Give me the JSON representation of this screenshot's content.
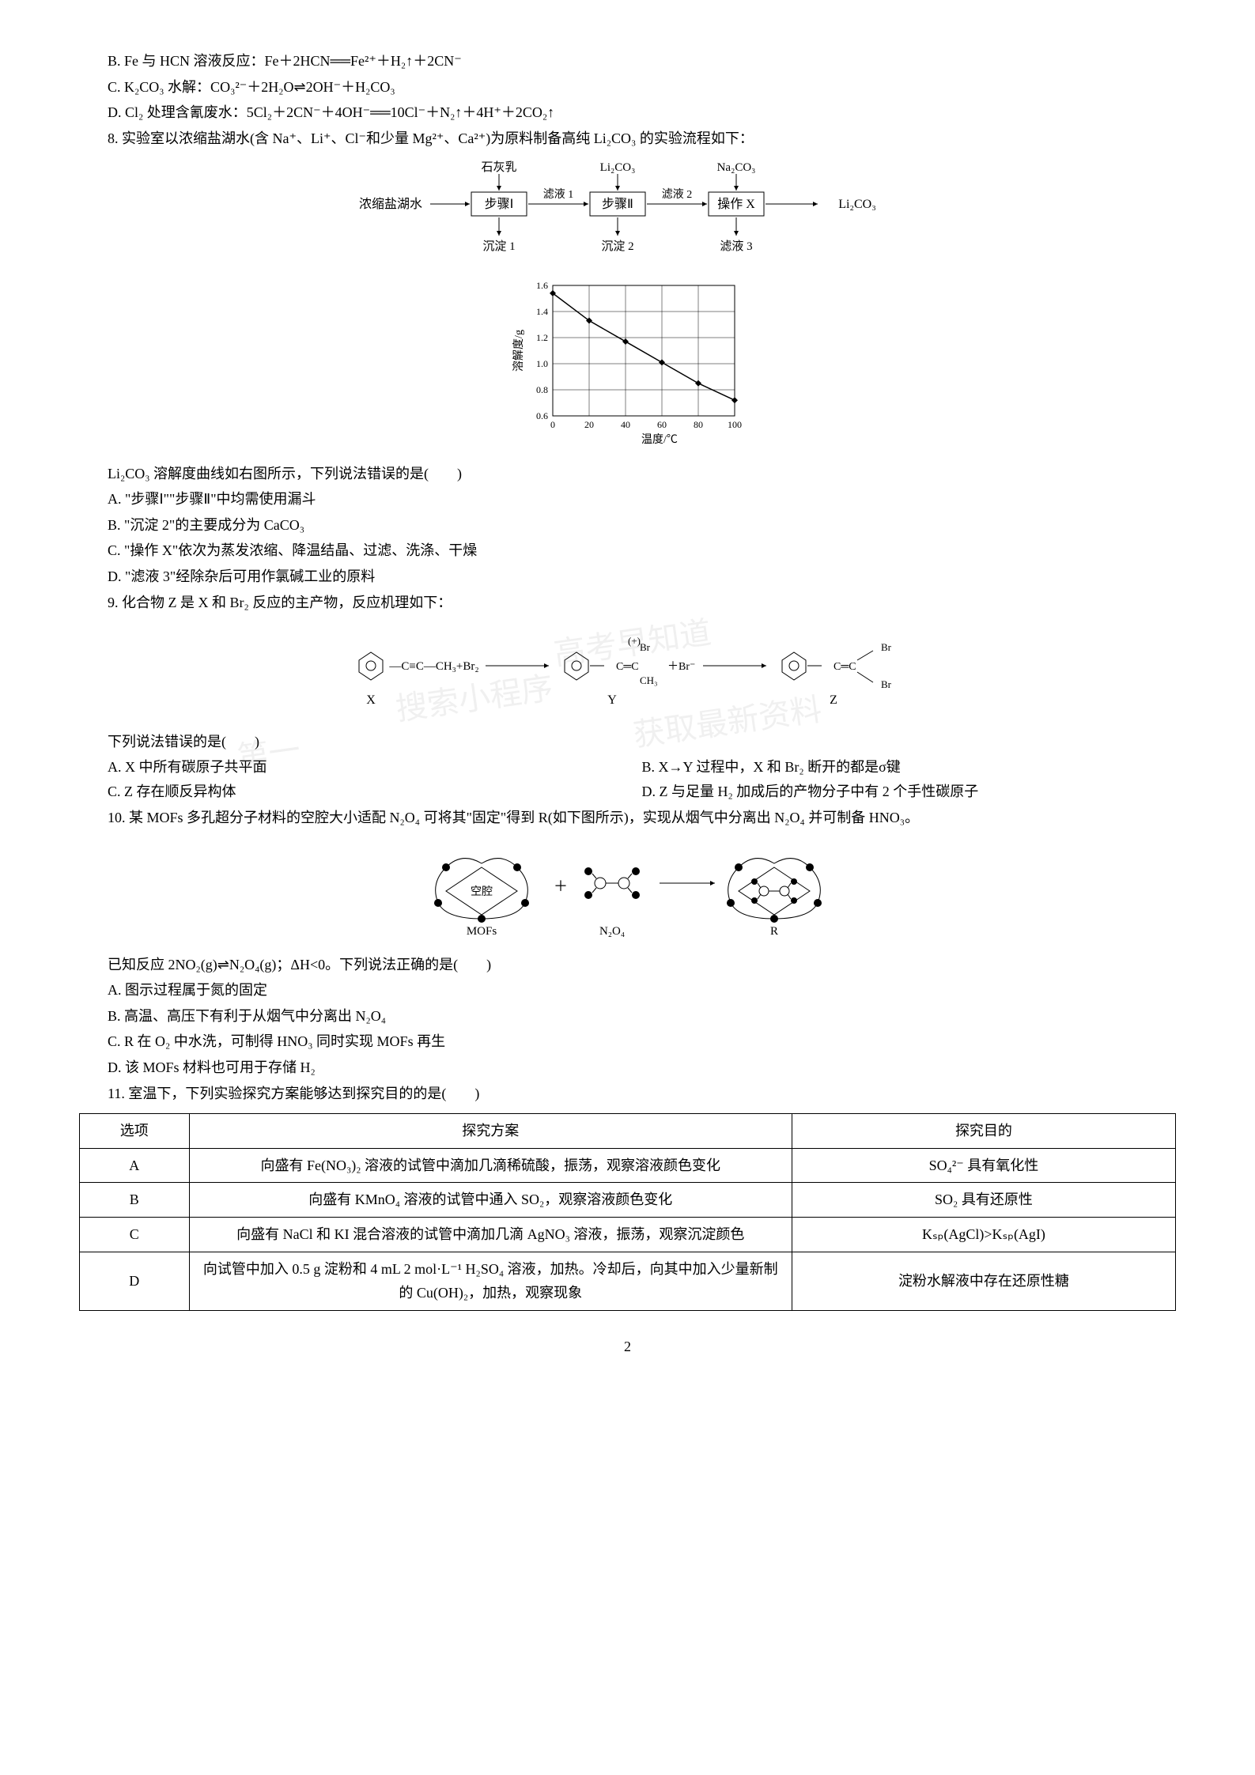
{
  "prelines": {
    "B": "B. Fe 与 HCN 溶液反应：Fe＋2HCN══Fe²⁺＋H₂↑＋2CN⁻",
    "C": "C. K₂CO₃ 水解：CO₃²⁻＋2H₂O⇌2OH⁻＋H₂CO₃",
    "D": "D. Cl₂ 处理含氰废水：5Cl₂＋2CN⁻＋4OH⁻══10Cl⁻＋N₂↑＋4H⁺＋2CO₂↑"
  },
  "q8": {
    "stem": "8. 实验室以浓缩盐湖水(含 Na⁺、Li⁺、Cl⁻和少量 Mg²⁺、Ca²⁺)为原料制备高纯 Li₂CO₃ 的实验流程如下：",
    "flow": {
      "start": "浓缩盐湖水",
      "top1": "石灰乳",
      "step1": "步骤Ⅰ",
      "bottom1": "沉淀 1",
      "mid1": "滤液 1",
      "top2": "Li₂CO₃",
      "step2": "步骤Ⅱ",
      "bottom2": "沉淀 2",
      "mid2": "滤液 2",
      "top3": "Na₂CO₃",
      "step3": "操作 X",
      "bottom3": "滤液 3",
      "end": "Li₂CO₃"
    },
    "chart": {
      "type": "line-scatter",
      "xlabel": "温度/℃",
      "ylabel": "溶解度/g",
      "xticks": [
        0,
        20,
        40,
        60,
        80,
        100
      ],
      "yticks": [
        0.6,
        0.8,
        1.0,
        1.2,
        1.4,
        1.6
      ],
      "points_x": [
        0,
        20,
        40,
        60,
        80,
        100
      ],
      "points_y": [
        1.54,
        1.33,
        1.17,
        1.01,
        0.85,
        0.72
      ],
      "marker": "diamond",
      "marker_color": "#000000",
      "line_color": "#000000",
      "grid_color": "#000000",
      "background": "#ffffff",
      "font_size": 12
    },
    "post": "Li₂CO₃ 溶解度曲线如右图所示，下列说法错误的是(　　)",
    "A": "A. \"步骤Ⅰ\"\"步骤Ⅱ\"中均需使用漏斗",
    "B": "B. \"沉淀 2\"的主要成分为 CaCO₃",
    "C": "C. \"操作 X\"依次为蒸发浓缩、降温结晶、过滤、洗涤、干燥",
    "D": "D. \"滤液 3\"经除杂后可用作氯碱工业的原料"
  },
  "q9": {
    "stem": "9. 化合物 Z 是 X 和 Br₂ 反应的主产物，反应机理如下：",
    "labels": {
      "X": "X",
      "Y": "Y",
      "Z": "Z"
    },
    "reagents": "—C≡C—CH₃+Br₂ ——→",
    "post": "下列说法错误的是(　　)",
    "A": "A. X 中所有碳原子共平面",
    "B": "B. X→Y 过程中，X 和 Br₂ 断开的都是σ键",
    "C": "C. Z 存在顺反异构体",
    "D": "D. Z 与足量 H₂ 加成后的产物分子中有 2 个手性碳原子"
  },
  "q10": {
    "stem": "10. 某 MOFs 多孔超分子材料的空腔大小适配 N₂O₄ 可将其\"固定\"得到 R(如下图所示)，实现从烟气中分离出 N₂O₄ 并可制备 HNO₃。",
    "labels": {
      "cavity": "空腔",
      "MOFs": "MOFs",
      "N2O4": "N₂O₄",
      "R": "R"
    },
    "post": "已知反应 2NO₂(g)⇌N₂O₄(g)；ΔH<0。下列说法正确的是(　　)",
    "A": "A. 图示过程属于氮的固定",
    "B": "B. 高温、高压下有利于从烟气中分离出 N₂O₄",
    "C": "C. R 在 O₂ 中水洗，可制得 HNO₃ 同时实现 MOFs 再生",
    "D": "D. 该 MOFs 材料也可用于存储 H₂"
  },
  "q11": {
    "stem": "11. 室温下，下列实验探究方案能够达到探究目的的是(　　)",
    "headers": [
      "选项",
      "探究方案",
      "探究目的"
    ],
    "rows": [
      [
        "A",
        "向盛有 Fe(NO₃)₂ 溶液的试管中滴加几滴稀硫酸，振荡，观察溶液颜色变化",
        "SO₄²⁻ 具有氧化性"
      ],
      [
        "B",
        "向盛有 KMnO₄ 溶液的试管中通入 SO₂，观察溶液颜色变化",
        "SO₂ 具有还原性"
      ],
      [
        "C",
        "向盛有 NaCl 和 KI 混合溶液的试管中滴加几滴 AgNO₃ 溶液，振荡，观察沉淀颜色",
        "Kₛₚ(AgCl)>Kₛₚ(AgI)"
      ],
      [
        "D",
        "向试管中加入 0.5 g 淀粉和 4 mL 2 mol·L⁻¹ H₂SO₄ 溶液，加热。冷却后，向其中加入少量新制的 Cu(OH)₂，加热，观察现象",
        "淀粉水解液中存在还原性糖"
      ]
    ]
  },
  "pagenum": "2",
  "watermarks": [
    "高考早知道",
    "获取最新资料",
    "搜索小程序",
    "第一"
  ]
}
